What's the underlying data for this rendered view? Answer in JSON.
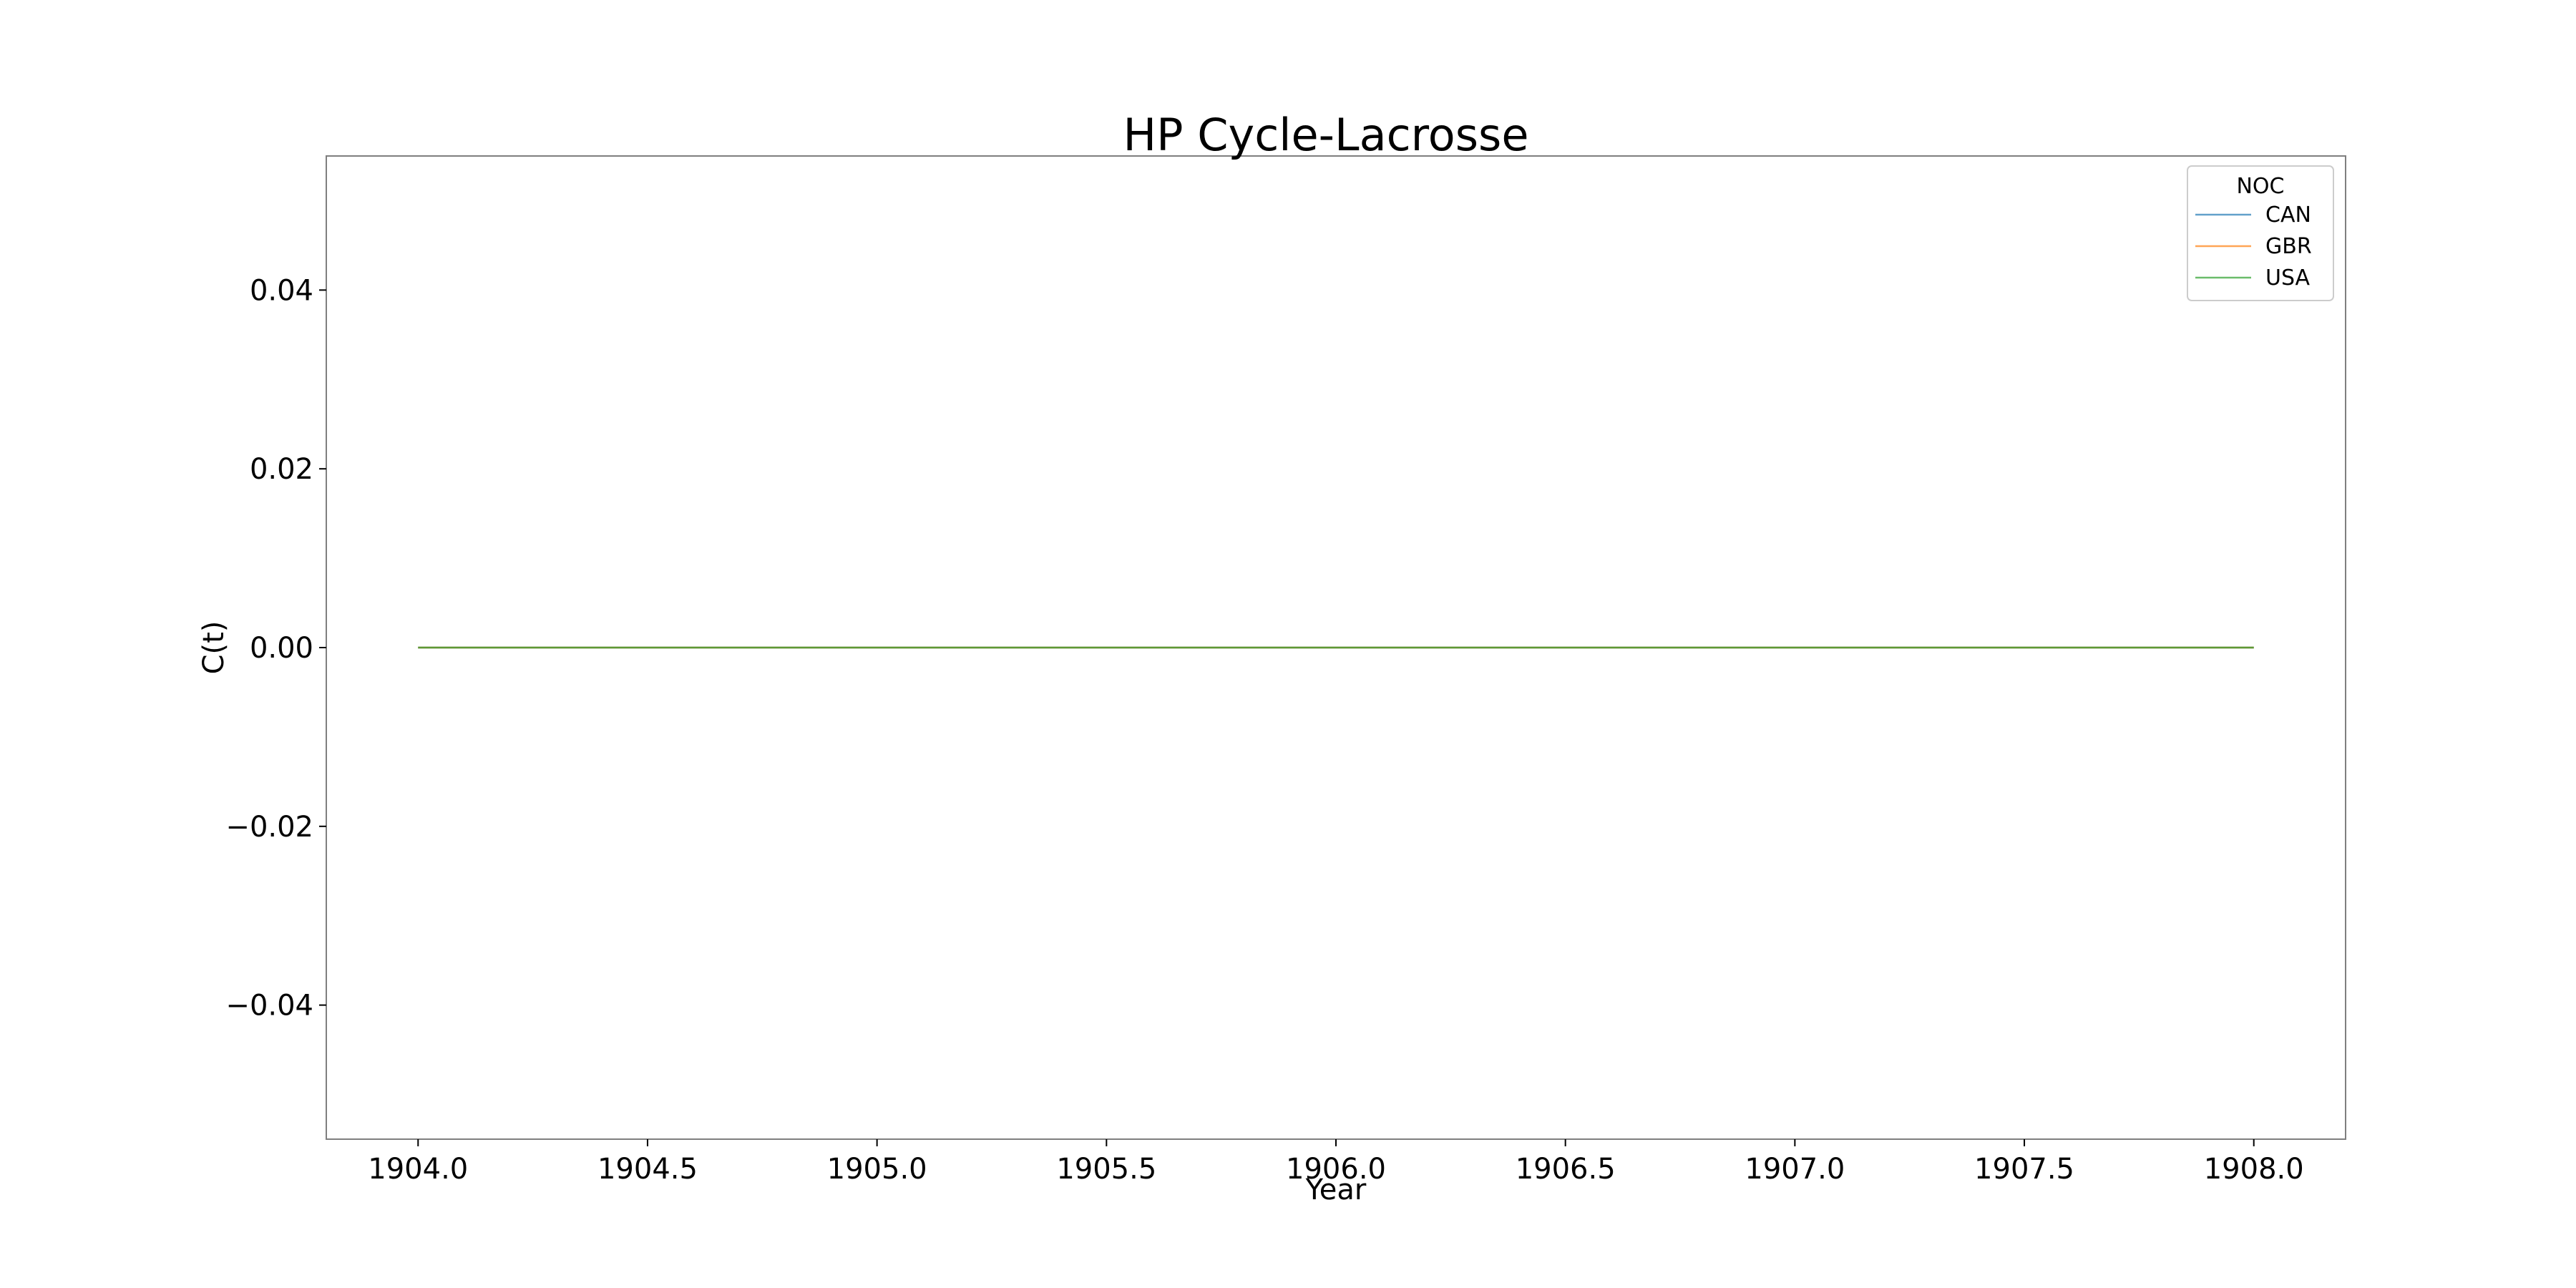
{
  "chart_data": {
    "type": "line",
    "title": "HP Cycle-Lacrosse",
    "xlabel": "Year",
    "ylabel": "C(t)",
    "xlim": [
      1903.8,
      1908.2
    ],
    "ylim": [
      -0.055,
      0.055
    ],
    "x_ticks": [
      1904.0,
      1904.5,
      1905.0,
      1905.5,
      1906.0,
      1906.5,
      1907.0,
      1907.5,
      1908.0
    ],
    "x_tick_labels": [
      "1904.0",
      "1904.5",
      "1905.0",
      "1905.5",
      "1906.0",
      "1906.5",
      "1907.0",
      "1907.5",
      "1908.0"
    ],
    "y_ticks": [
      -0.04,
      -0.02,
      0.0,
      0.02,
      0.04
    ],
    "y_tick_labels": [
      "−0.04",
      "−0.02",
      "0.00",
      "0.02",
      "0.04"
    ],
    "grid": false,
    "legend": {
      "title": "NOC",
      "placement": "top-right"
    },
    "series": [
      {
        "name": "CAN",
        "color": "#1f77b4",
        "x": [
          1904.0,
          1908.0
        ],
        "values": [
          0.0,
          0.0
        ]
      },
      {
        "name": "GBR",
        "color": "#ff7f0e",
        "x": [
          1904.0,
          1908.0
        ],
        "values": [
          0.0,
          0.0
        ]
      },
      {
        "name": "USA",
        "color": "#2ca02c",
        "x": [
          1904.0,
          1908.0
        ],
        "values": [
          0.0,
          0.0
        ]
      }
    ]
  }
}
